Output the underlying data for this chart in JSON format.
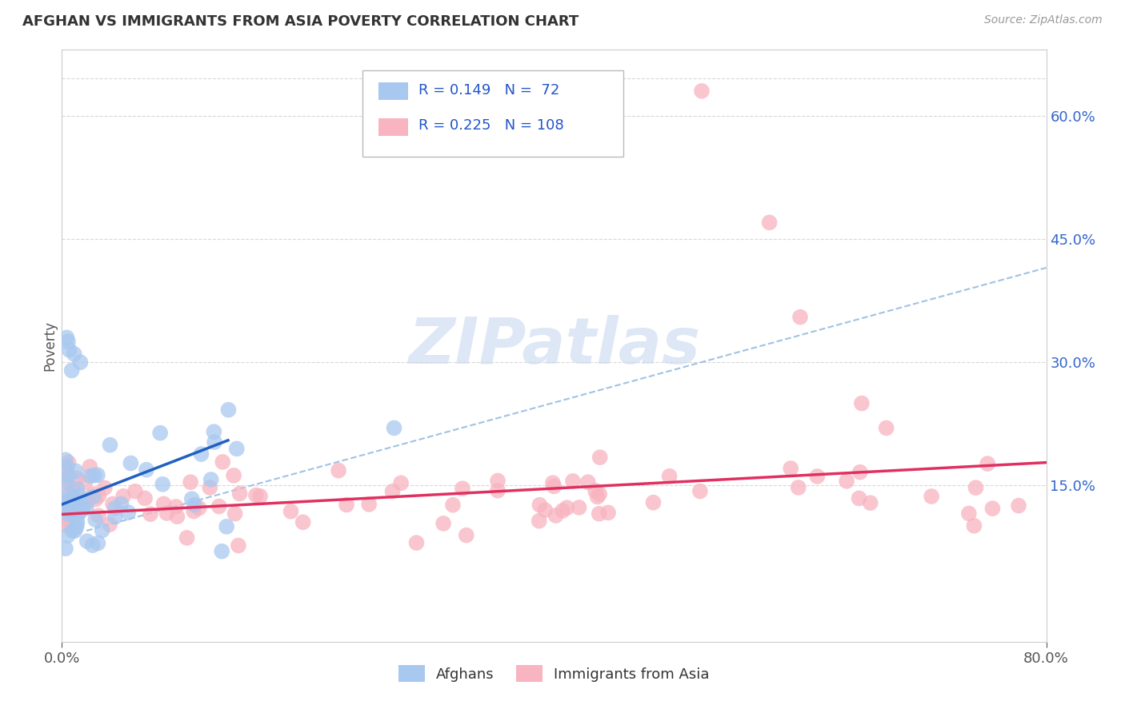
{
  "title": "AFGHAN VS IMMIGRANTS FROM ASIA POVERTY CORRELATION CHART",
  "source": "Source: ZipAtlas.com",
  "ylabel": "Poverty",
  "ytick_labels": [
    "15.0%",
    "30.0%",
    "45.0%",
    "60.0%"
  ],
  "ytick_values": [
    0.15,
    0.3,
    0.45,
    0.6
  ],
  "xlim": [
    0.0,
    0.8
  ],
  "ylim": [
    -0.04,
    0.68
  ],
  "legend1_label": "Afghans",
  "legend2_label": "Immigrants from Asia",
  "R1": 0.149,
  "N1": 72,
  "R2": 0.225,
  "N2": 108,
  "blue_scatter_color": "#a8c8f0",
  "pink_scatter_color": "#f8b4c0",
  "blue_line_color": "#2060c0",
  "pink_line_color": "#e03060",
  "dash_line_color": "#90b8e0",
  "grid_color": "#d8d8d8",
  "watermark_color": "#c8d8f0"
}
